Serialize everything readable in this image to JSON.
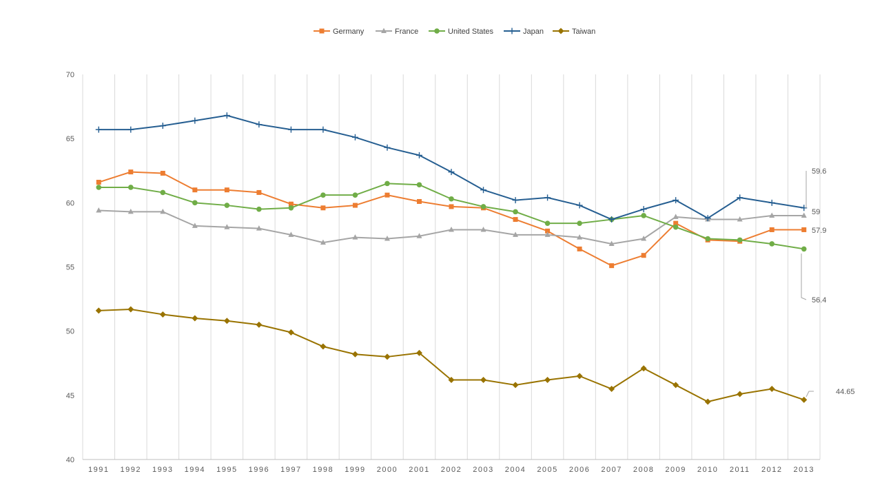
{
  "chart_data": {
    "type": "line",
    "title": "",
    "xlabel": "",
    "ylabel": "",
    "ylim": [
      40,
      70
    ],
    "yticks": [
      40,
      45,
      50,
      55,
      60,
      65,
      70
    ],
    "grid": "vertical",
    "legend_position": "top-center",
    "x": [
      "1991",
      "1992",
      "1993",
      "1994",
      "1995",
      "1996",
      "1997",
      "1998",
      "1999",
      "2000",
      "2001",
      "2002",
      "2003",
      "2004",
      "2005",
      "2006",
      "2007",
      "2008",
      "2009",
      "2010",
      "2011",
      "2012",
      "2013"
    ],
    "series": [
      {
        "name": "Germany",
        "color": "#ed7d31",
        "marker": "square",
        "values": [
          61.6,
          62.4,
          62.3,
          61.0,
          61.0,
          60.8,
          59.9,
          59.6,
          59.8,
          60.6,
          60.1,
          59.7,
          59.6,
          58.7,
          57.8,
          56.4,
          55.1,
          55.9,
          58.4,
          57.1,
          57.0,
          57.9,
          57.9
        ]
      },
      {
        "name": "France",
        "color": "#a5a5a5",
        "marker": "triangle",
        "values": [
          59.4,
          59.3,
          59.3,
          58.2,
          58.1,
          58.0,
          57.5,
          56.9,
          57.3,
          57.2,
          57.4,
          57.9,
          57.9,
          57.5,
          57.5,
          57.3,
          56.8,
          57.2,
          58.9,
          58.7,
          58.7,
          59.0,
          59.0
        ]
      },
      {
        "name": "United States",
        "color": "#70ad47",
        "marker": "circle",
        "values": [
          61.2,
          61.2,
          60.8,
          60.0,
          59.8,
          59.5,
          59.6,
          60.6,
          60.6,
          61.5,
          61.4,
          60.3,
          59.7,
          59.3,
          58.4,
          58.4,
          58.7,
          59.0,
          58.1,
          57.2,
          57.1,
          56.8,
          56.4
        ]
      },
      {
        "name": "Japan",
        "color": "#255e91",
        "marker": "plus",
        "values": [
          65.7,
          65.7,
          66.0,
          66.4,
          66.8,
          66.1,
          65.7,
          65.7,
          65.1,
          64.3,
          63.7,
          62.4,
          61.0,
          60.2,
          60.4,
          59.8,
          58.7,
          59.5,
          60.2,
          58.8,
          60.4,
          60.0,
          59.6
        ]
      },
      {
        "name": "Taiwan",
        "color": "#997300",
        "marker": "diamond",
        "values": [
          51.6,
          51.7,
          51.3,
          51.0,
          50.8,
          50.5,
          49.9,
          48.8,
          48.2,
          48.0,
          48.3,
          46.2,
          46.2,
          45.8,
          46.2,
          46.5,
          45.5,
          47.1,
          45.8,
          44.5,
          45.1,
          45.5,
          44.65
        ]
      }
    ],
    "annotations": [
      {
        "label": "59.6",
        "series": "Japan"
      },
      {
        "label": "59",
        "series": "France"
      },
      {
        "label": "57.9",
        "series": "Germany"
      },
      {
        "label": "56.4",
        "series": "United States"
      },
      {
        "label": "44.65",
        "series": "Taiwan"
      }
    ]
  }
}
